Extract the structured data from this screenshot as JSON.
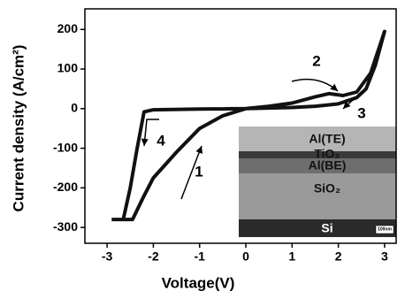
{
  "chart_data": {
    "type": "line",
    "x_label": "Voltage(V)",
    "y_label": "Current density (A/cm²)",
    "x": [
      -2.9,
      -2.45,
      -2.2,
      -2,
      -1.5,
      -1,
      -0.5,
      0,
      0.5,
      1,
      1.5,
      1.8,
      2.1,
      2.4,
      2.7,
      3,
      2.8,
      2.6,
      2.4,
      2,
      1.5,
      1,
      0,
      -1,
      -2,
      -2.2,
      -2.35,
      -2.5,
      -2.65,
      -2.9
    ],
    "series": [
      {
        "color": "#111111",
        "values": [
          -280,
          -280,
          -220,
          -175,
          -110,
          -50,
          -18,
          0,
          6,
          14,
          30,
          38,
          33,
          42,
          90,
          195,
          110,
          50,
          28,
          12,
          6,
          3,
          0,
          -1,
          -3,
          -8,
          -100,
          -200,
          -280,
          -280
        ]
      }
    ],
    "xlim": [
      -3.48,
      3.25
    ],
    "xticks": [
      -3,
      -2,
      -1,
      0,
      1,
      2,
      3
    ],
    "ylim": [
      -340,
      252
    ],
    "yticks": [
      -300,
      -200,
      -100,
      0,
      100,
      200
    ],
    "grid": false,
    "annotations": [
      "1",
      "2",
      "3",
      "4"
    ],
    "inset": {
      "layers": [
        "Al(TE)",
        "TiO₂",
        "Al(BE)",
        "SiO₂",
        "Si"
      ],
      "scale_bar": "100nm"
    }
  }
}
